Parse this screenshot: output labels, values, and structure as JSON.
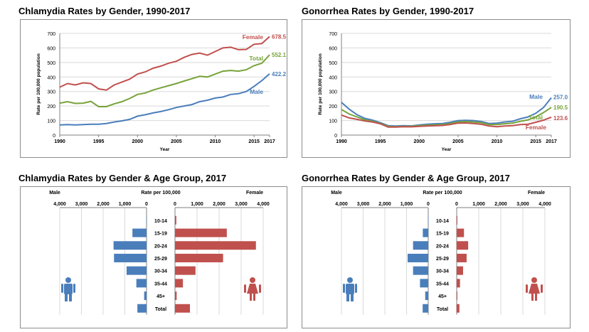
{
  "chart_data": [
    {
      "id": "chlamydia-trend",
      "type": "line",
      "title": "Chlamydia Rates by Gender, 1990-2017",
      "ylabel": "Rate per 100,000 population",
      "xlabel": "Year",
      "ylim": [
        0,
        700
      ],
      "yticks": [
        0,
        100,
        200,
        300,
        400,
        500,
        600,
        700
      ],
      "xlim": [
        1990,
        2017
      ],
      "xticks": [
        1990,
        1995,
        2000,
        2005,
        2010,
        2015,
        2017
      ],
      "x": [
        1990,
        1991,
        1992,
        1993,
        1994,
        1995,
        1996,
        1997,
        1998,
        1999,
        2000,
        2001,
        2002,
        2003,
        2004,
        2005,
        2006,
        2007,
        2008,
        2009,
        2010,
        2011,
        2012,
        2013,
        2014,
        2015,
        2016,
        2017
      ],
      "grid": "horizontal",
      "series": [
        {
          "name": "Female",
          "label": "Female",
          "end_value": "678.5",
          "color": "#c0504d",
          "values": [
            330,
            355,
            345,
            360,
            355,
            318,
            310,
            345,
            365,
            385,
            420,
            435,
            460,
            475,
            495,
            508,
            535,
            555,
            565,
            550,
            575,
            600,
            605,
            588,
            590,
            625,
            630,
            678.5
          ]
        },
        {
          "name": "Total",
          "label": "Total",
          "end_value": "552.1",
          "color": "#77a33a",
          "values": [
            220,
            230,
            218,
            220,
            232,
            196,
            196,
            215,
            230,
            252,
            280,
            290,
            310,
            325,
            340,
            355,
            372,
            388,
            405,
            400,
            420,
            440,
            445,
            440,
            450,
            478,
            495,
            552.1
          ]
        },
        {
          "name": "Male",
          "label": "Male",
          "end_value": "422.2",
          "color": "#4a7ebb",
          "values": [
            70,
            72,
            70,
            72,
            75,
            75,
            80,
            90,
            98,
            108,
            130,
            140,
            152,
            162,
            175,
            190,
            200,
            210,
            230,
            240,
            255,
            262,
            280,
            285,
            300,
            335,
            375,
            422.2
          ]
        }
      ]
    },
    {
      "id": "gonorrhea-trend",
      "type": "line",
      "title": "Gonorrhea Rates by Gender, 1990-2017",
      "ylabel": "Rate per 100,000 population",
      "xlabel": "Year",
      "ylim": [
        0,
        700
      ],
      "yticks": [
        0,
        100,
        200,
        300,
        400,
        500,
        600,
        700
      ],
      "xlim": [
        1990,
        2017
      ],
      "xticks": [
        1990,
        1995,
        2000,
        2005,
        2010,
        2015,
        2017
      ],
      "x": [
        1990,
        1991,
        1992,
        1993,
        1994,
        1995,
        1996,
        1997,
        1998,
        1999,
        2000,
        2001,
        2002,
        2003,
        2004,
        2005,
        2006,
        2007,
        2008,
        2009,
        2010,
        2011,
        2012,
        2013,
        2014,
        2015,
        2016,
        2017
      ],
      "grid": "horizontal",
      "series": [
        {
          "name": "Male",
          "label": "Male",
          "end_value": "257.0",
          "color": "#4a7ebb",
          "values": [
            225,
            178,
            140,
            115,
            103,
            85,
            65,
            62,
            65,
            63,
            70,
            75,
            78,
            80,
            88,
            100,
            102,
            100,
            93,
            80,
            82,
            90,
            95,
            112,
            125,
            150,
            190,
            257.0
          ]
        },
        {
          "name": "Total",
          "label": "Total",
          "end_value": "190.5",
          "color": "#77a33a",
          "values": [
            176,
            145,
            125,
            105,
            95,
            80,
            60,
            58,
            60,
            60,
            65,
            68,
            70,
            72,
            80,
            90,
            93,
            90,
            85,
            72,
            72,
            78,
            82,
            95,
            105,
            125,
            155,
            190.5
          ]
        },
        {
          "name": "Female",
          "label": "Female",
          "end_value": "123.6",
          "color": "#c0504d",
          "values": [
            138,
            118,
            108,
            97,
            90,
            78,
            55,
            55,
            58,
            57,
            60,
            62,
            64,
            66,
            73,
            82,
            83,
            80,
            74,
            62,
            58,
            62,
            65,
            72,
            75,
            88,
            103,
            123.6
          ]
        }
      ]
    },
    {
      "id": "chlamydia-age",
      "type": "bar",
      "title": "Chlamydia Rates by Gender & Age Group, 2017",
      "male_label": "Male",
      "female_label": "Female",
      "axis_label": "Rate per 100,000",
      "ticks_left": [
        "4,000",
        "3,000",
        "2,000",
        "1,000",
        "0"
      ],
      "ticks_right": [
        "0",
        "1,000",
        "2,000",
        "3,000",
        "4,000"
      ],
      "xlim": [
        0,
        4000
      ],
      "categories": [
        "10-14",
        "15-19",
        "20-24",
        "25-29",
        "30-34",
        "35-44",
        "45+",
        "Total"
      ],
      "male_color": "#4a7ebb",
      "female_color": "#c0504d",
      "series": [
        {
          "name": "Male",
          "values": [
            10,
            650,
            1520,
            1500,
            920,
            470,
            110,
            422
          ]
        },
        {
          "name": "Female",
          "values": [
            60,
            2350,
            3670,
            2180,
            930,
            360,
            75,
            678
          ]
        }
      ]
    },
    {
      "id": "gonorrhea-age",
      "type": "bar",
      "title": "Gonorrhea Rates by Gender & Age Group, 2017",
      "male_label": "Male",
      "female_label": "Female",
      "axis_label": "Rate per 100,000",
      "ticks_left": [
        "4,000",
        "3,000",
        "2,000",
        "1,000",
        "0"
      ],
      "ticks_right": [
        "0",
        "1,000",
        "2,000",
        "3,000",
        "4,000"
      ],
      "xlim": [
        0,
        4000
      ],
      "categories": [
        "10-14",
        "15-19",
        "20-24",
        "25-29",
        "30-34",
        "35-44",
        "45+",
        "Total"
      ],
      "male_color": "#4a7ebb",
      "female_color": "#c0504d",
      "series": [
        {
          "name": "Male",
          "values": [
            5,
            250,
            700,
            950,
            700,
            380,
            140,
            257
          ]
        },
        {
          "name": "Female",
          "values": [
            30,
            330,
            520,
            450,
            290,
            150,
            30,
            124
          ]
        }
      ]
    }
  ]
}
